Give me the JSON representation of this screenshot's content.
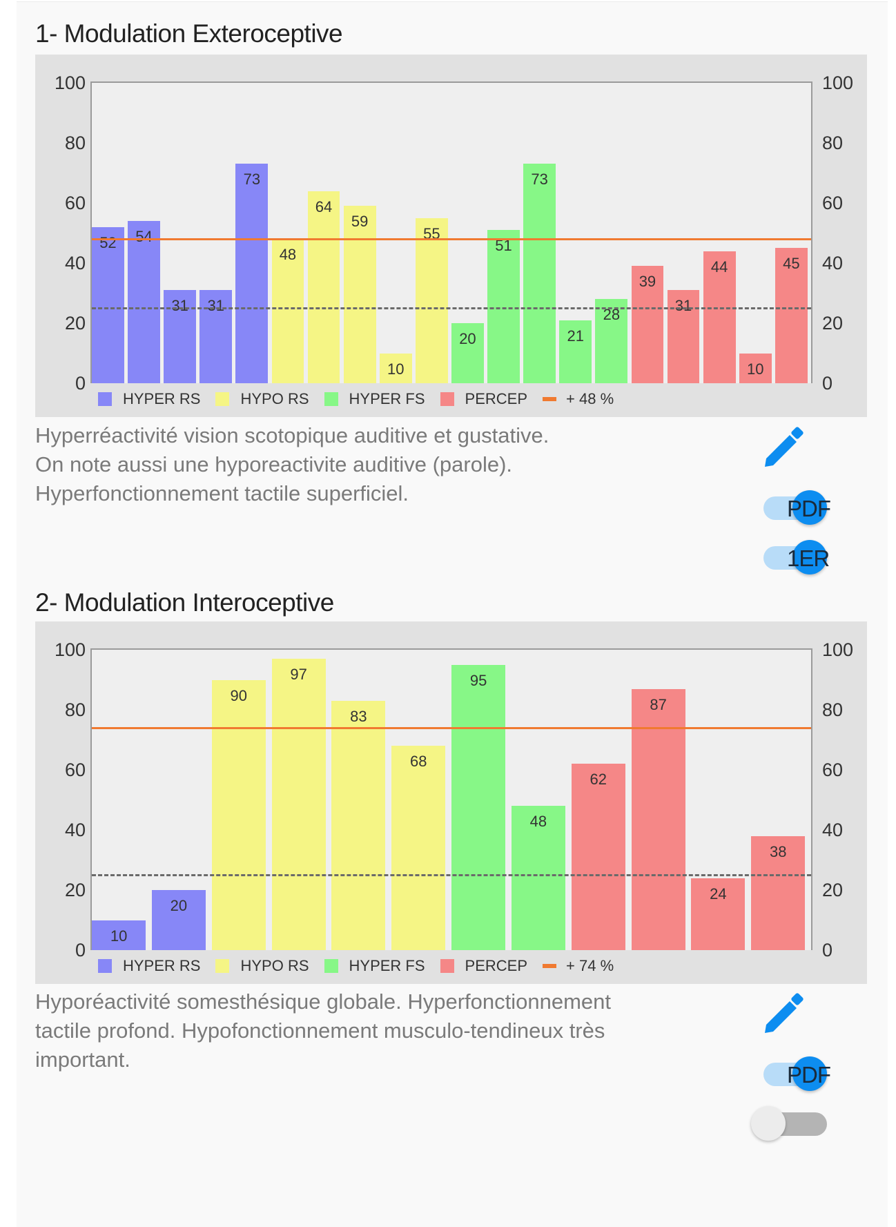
{
  "sections": [
    {
      "title": "1- Modulation Exteroceptive",
      "description_lines": [
        "Hyperréactivité vision scotopique auditive et gustative.",
        "On note aussi une hyporeactivite auditive (parole).",
        "Hyperfonctionnement tactile superficiel."
      ],
      "controls": {
        "edit_icon": "pencil-icon",
        "toggles": [
          {
            "label": "PDF",
            "state": "on"
          },
          {
            "label": "1ER",
            "state": "on"
          }
        ]
      }
    },
    {
      "title": "2- Modulation Interoceptive",
      "description_lines": [
        "Hyporéactivité somesthésique globale. Hyperfonctionnement",
        "tactile profond. Hypofonctionnement musculo-tendineux très",
        "important."
      ],
      "controls": {
        "edit_icon": "pencil-icon",
        "toggles": [
          {
            "label": "PDF",
            "state": "on"
          },
          {
            "label": "",
            "state": "off"
          }
        ]
      }
    }
  ],
  "colors": {
    "HYPER RS": "#8787f7",
    "HYPO RS": "#f5f585",
    "HYPER FS": "#87f787",
    "PERCEP": "#f58787",
    "mean_line": "#f07a30",
    "threshold_line": "#6a6a6a",
    "accent": "#0d8df0"
  },
  "chart_data": [
    {
      "type": "bar",
      "title": "1- Modulation Exteroceptive",
      "xlabel": "",
      "ylabel": "",
      "ylim": [
        0,
        100
      ],
      "yticks": [
        0,
        20,
        40,
        60,
        80,
        100
      ],
      "y_axis_both_sides": true,
      "grid": false,
      "legend_position": "bottom",
      "legend": [
        "HYPER RS",
        "HYPO RS",
        "HYPER FS",
        "PERCEP",
        "+ 48 %"
      ],
      "series": [
        {
          "name": "HYPER RS",
          "values": [
            52,
            54,
            31,
            31,
            73
          ]
        },
        {
          "name": "HYPO RS",
          "values": [
            48,
            64,
            59,
            10,
            55
          ]
        },
        {
          "name": "HYPER FS",
          "values": [
            20,
            51,
            73,
            21,
            28
          ]
        },
        {
          "name": "PERCEP",
          "values": [
            39,
            31,
            44,
            10,
            45
          ]
        }
      ],
      "reference_lines": [
        {
          "name": "mean",
          "label": "+ 48 %",
          "value": 48,
          "style": "solid",
          "color": "#f07a30"
        },
        {
          "name": "threshold",
          "value": 25,
          "style": "dashed",
          "color": "#6a6a6a"
        }
      ]
    },
    {
      "type": "bar",
      "title": "2- Modulation Interoceptive",
      "xlabel": "",
      "ylabel": "",
      "ylim": [
        0,
        100
      ],
      "yticks": [
        0,
        20,
        40,
        60,
        80,
        100
      ],
      "y_axis_both_sides": true,
      "grid": false,
      "legend_position": "bottom",
      "legend": [
        "HYPER RS",
        "HYPO RS",
        "HYPER FS",
        "PERCEP",
        "+ 74 %"
      ],
      "series": [
        {
          "name": "HYPER RS",
          "values": [
            10,
            20
          ]
        },
        {
          "name": "HYPO RS",
          "values": [
            90,
            97,
            83,
            68
          ]
        },
        {
          "name": "HYPER FS",
          "values": [
            95,
            48
          ]
        },
        {
          "name": "PERCEP",
          "values": [
            62,
            87,
            24,
            38
          ]
        }
      ],
      "reference_lines": [
        {
          "name": "mean",
          "label": "+ 74 %",
          "value": 74,
          "style": "solid",
          "color": "#f07a30"
        },
        {
          "name": "threshold",
          "value": 25,
          "style": "dashed",
          "color": "#6a6a6a"
        }
      ]
    }
  ]
}
